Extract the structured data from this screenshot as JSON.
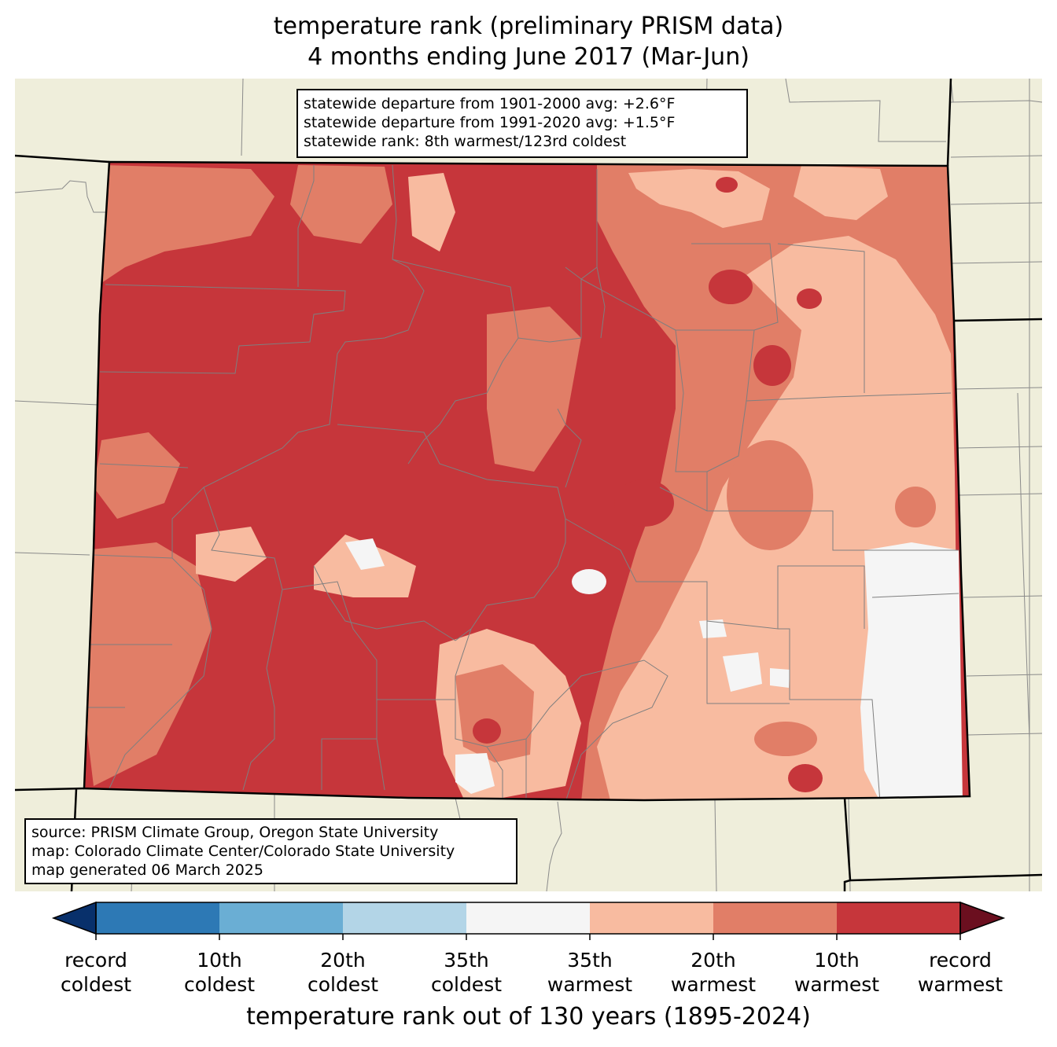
{
  "title": {
    "line1": "temperature rank (preliminary PRISM data)",
    "line2": "4 months ending June 2017 (Mar-Jun)"
  },
  "stats": {
    "line1": "statewide departure from 1901-2000 avg: +2.6°F",
    "line2": "statewide departure from 1991-2020 avg: +1.5°F",
    "line3": "statewide rank: 8th warmest/123rd coldest"
  },
  "source": {
    "line1": "source: PRISM Climate Group, Oregon State University",
    "line2": "map: Colorado Climate Center/Colorado State University",
    "line3": "map generated 06 March 2025"
  },
  "colorbar": {
    "label": "temperature rank out of 130 years (1895-2024)",
    "bins": [
      {
        "color": "#2d79b5"
      },
      {
        "color": "#6aaed4"
      },
      {
        "color": "#b3d5e7"
      },
      {
        "color": "#f5f5f5"
      },
      {
        "color": "#f8bba0"
      },
      {
        "color": "#e17e67"
      },
      {
        "color": "#c6363b"
      }
    ],
    "extend_low_color": "#08306b",
    "extend_high_color": "#6b0f1f",
    "ticks": [
      {
        "line1": "record",
        "line2": "coldest"
      },
      {
        "line1": "10th",
        "line2": "coldest"
      },
      {
        "line1": "20th",
        "line2": "coldest"
      },
      {
        "line1": "35th",
        "line2": "coldest"
      },
      {
        "line1": "35th",
        "line2": "warmest"
      },
      {
        "line1": "20th",
        "line2": "warmest"
      },
      {
        "line1": "10th",
        "line2": "warmest"
      },
      {
        "line1": "record",
        "line2": "warmest"
      }
    ]
  },
  "map": {
    "region": "Colorado",
    "background_color": "#efeedb",
    "dominant_category": "10th warmest to record warmest",
    "colors": {
      "record_warmest_to_10th": "#c6363b",
      "10th_to_20th_warmest": "#e17e67",
      "20th_to_35th_warmest": "#f8bba0",
      "near_normal": "#f5f5f5"
    }
  }
}
